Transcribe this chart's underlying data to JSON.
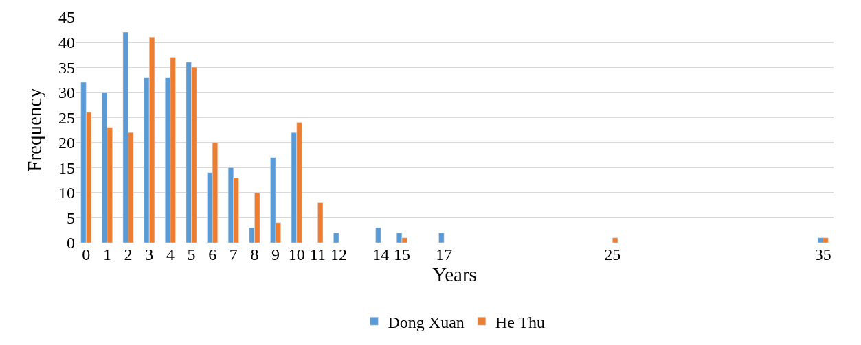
{
  "chart_data": {
    "type": "bar",
    "xlabel": "Years",
    "ylabel": "Frequency",
    "x": [
      0,
      1,
      2,
      3,
      4,
      5,
      6,
      7,
      8,
      9,
      10,
      11,
      12,
      14,
      15,
      17,
      25,
      35
    ],
    "series": [
      {
        "name": "Dong Xuan",
        "color": "#5b9bd5",
        "values": [
          32,
          30,
          42,
          33,
          33,
          36,
          14,
          15,
          3,
          17,
          22,
          null,
          2,
          3,
          2,
          2,
          null,
          1
        ]
      },
      {
        "name": "He Thu",
        "color": "#ed7d31",
        "values": [
          26,
          23,
          22,
          41,
          37,
          35,
          20,
          13,
          10,
          4,
          24,
          8,
          null,
          null,
          1,
          null,
          1,
          1
        ]
      }
    ],
    "xlim": [
      -0.5,
      35.5
    ],
    "xticks": [
      0,
      1,
      2,
      3,
      4,
      5,
      6,
      7,
      8,
      9,
      10,
      11,
      12,
      14,
      15,
      17,
      25,
      35
    ],
    "ylim": [
      0,
      45
    ],
    "yticks": [
      0,
      5,
      10,
      15,
      20,
      25,
      30,
      35,
      40,
      45
    ],
    "grid": "y",
    "legend": "bottom"
  }
}
